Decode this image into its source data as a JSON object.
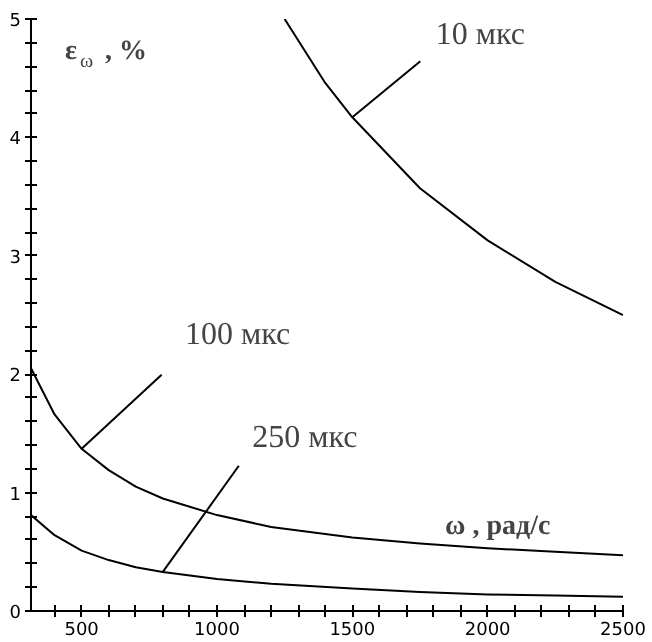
{
  "chart_data": {
    "type": "line",
    "xlabel": "ω , рад/с",
    "ylabel": "ε$_{ω}$ , %",
    "xlim": [
      313,
      2500
    ],
    "ylim": [
      0,
      5
    ],
    "xticks": [
      {
        "value": 400,
        "label": null
      },
      500,
      {
        "value": 600,
        "label": null
      },
      {
        "value": 700,
        "label": null
      },
      {
        "value": 800,
        "label": null
      },
      {
        "value": 900,
        "label": null
      },
      1000,
      {
        "value": 1100,
        "label": null
      },
      {
        "value": 1200,
        "label": null
      },
      {
        "value": 1300,
        "label": null
      },
      {
        "value": 1400,
        "label": null
      },
      1500,
      {
        "value": 1600,
        "label": null
      },
      {
        "value": 1700,
        "label": null
      },
      {
        "value": 1800,
        "label": null
      },
      {
        "value": 1900,
        "label": null
      },
      2000,
      {
        "value": 2100,
        "label": null
      },
      {
        "value": 2200,
        "label": null
      },
      {
        "value": 2300,
        "label": null
      },
      {
        "value": 2400,
        "label": null
      },
      2500
    ],
    "yticks": [
      0,
      {
        "value": 0.2,
        "label": null
      },
      {
        "value": 0.4,
        "label": null
      },
      {
        "value": 0.6,
        "label": null
      },
      {
        "value": 0.8,
        "label": null
      },
      1,
      {
        "value": 1.2,
        "label": null
      },
      {
        "value": 1.4,
        "label": null
      },
      {
        "value": 1.6,
        "label": null
      },
      {
        "value": 1.8,
        "label": null
      },
      2,
      {
        "value": 2.2,
        "label": null
      },
      {
        "value": 2.4,
        "label": null
      },
      {
        "value": 2.6,
        "label": null
      },
      {
        "value": 2.8,
        "label": null
      },
      3,
      {
        "value": 3.2,
        "label": null
      },
      {
        "value": 3.4,
        "label": null
      },
      {
        "value": 3.6,
        "label": null
      },
      {
        "value": 3.8,
        "label": null
      },
      4,
      {
        "value": 4.2,
        "label": null
      },
      {
        "value": 4.4,
        "label": null
      },
      {
        "value": 4.6,
        "label": null
      },
      {
        "value": 4.8,
        "label": null
      },
      5
    ],
    "grid": false,
    "marker": "none",
    "line_style": "solid",
    "series": [
      {
        "color": "#000000",
        "x": [
          1250,
          1400,
          1500,
          1750,
          2000,
          2250,
          2500
        ],
        "values": [
          5,
          4.46,
          4.17,
          3.57,
          3.13,
          2.78,
          2.5
        ]
      },
      {
        "color": "#000000",
        "x": [
          313,
          400,
          500,
          600,
          700,
          800,
          1000,
          1200,
          1500,
          1750,
          2000,
          2250,
          2500
        ],
        "values": [
          2.05,
          1.66,
          1.37,
          1.19,
          1.05,
          0.95,
          0.81,
          0.71,
          0.62,
          0.57,
          0.53,
          0.5,
          0.47
        ]
      },
      {
        "color": "#000000",
        "x": [
          313,
          400,
          500,
          600,
          700,
          800,
          1000,
          1200,
          1500,
          1750,
          2000,
          2250,
          2500
        ],
        "values": [
          0.81,
          0.64,
          0.51,
          0.43,
          0.37,
          0.33,
          0.27,
          0.23,
          0.19,
          0.16,
          0.14,
          0.13,
          0.12
        ]
      }
    ],
    "annotations": [
      {
        "text": "10 мкс",
        "x": 1500,
        "y": 4.17
      },
      {
        "text": "100 мкс",
        "x": 500,
        "y": 1.37
      },
      {
        "text": "250 мкс",
        "x": 800,
        "y": 0.33
      }
    ]
  }
}
